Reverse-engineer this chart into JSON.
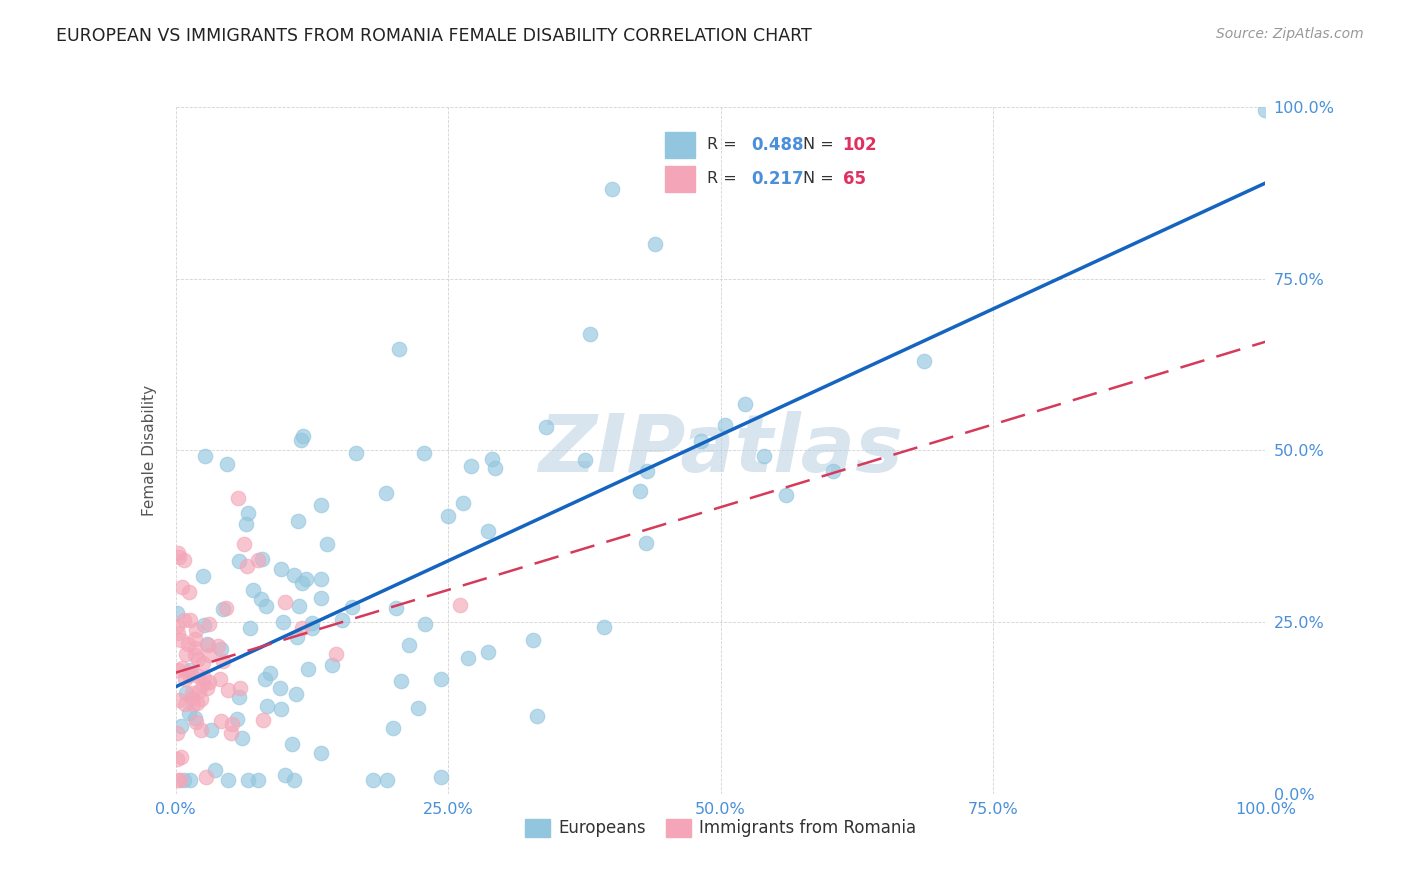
{
  "title": "EUROPEAN VS IMMIGRANTS FROM ROMANIA FEMALE DISABILITY CORRELATION CHART",
  "source": "Source: ZipAtlas.com",
  "ylabel": "Female Disability",
  "watermark": "ZIPatlas",
  "blue_R": 0.488,
  "blue_N": 102,
  "pink_R": 0.217,
  "pink_N": 65,
  "blue_color": "#92c5de",
  "pink_color": "#f4a6b8",
  "blue_line_color": "#1565c0",
  "pink_line_color": "#d63a5a",
  "background_color": "#ffffff",
  "grid_color": "#c8c8c8",
  "title_color": "#222222",
  "axis_tick_color": "#4a90d9",
  "legend_R_color": "#4a90d9",
  "legend_N_color": "#e03060",
  "source_color": "#999999"
}
